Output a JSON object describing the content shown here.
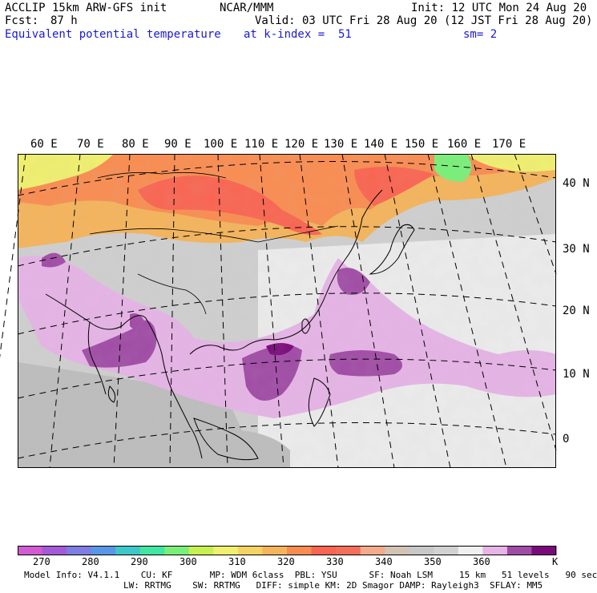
{
  "header": {
    "model_title": "ACCLIP 15km ARW-GFS init",
    "org": "NCAR/MMM",
    "init": "Init: 12 UTC Mon 24 Aug 20",
    "fcst_label": "Fcst:",
    "fcst_value": "87 h",
    "valid": "Valid: 03 UTC Fri 28 Aug 20 (12 JST Fri 28 Aug 20)",
    "field": "Equivalent potential temperature",
    "level": "at k-index =  51",
    "smooth": "sm= 2"
  },
  "map": {
    "lon_labels": [
      "60 E",
      "70 E",
      "80 E",
      "90 E",
      "100 E",
      "110 E",
      "120 E",
      "130 E",
      "140 E",
      "150 E",
      "160 E",
      "170 E"
    ],
    "lat_labels": [
      "40 N",
      "30 N",
      "20 N",
      "10 N",
      "0"
    ]
  },
  "colorbar": {
    "unit": "K",
    "tick_labels": [
      "270",
      "280",
      "290",
      "300",
      "310",
      "320",
      "330",
      "340",
      "350",
      "360"
    ],
    "colors": [
      "#d25ad2",
      "#a45ad8",
      "#7d7de4",
      "#5a96e8",
      "#3cc8c8",
      "#41e6a0",
      "#78f078",
      "#c8f050",
      "#f0f06e",
      "#f5d264",
      "#f5b45a",
      "#fa8c50",
      "#fa6450",
      "#f56e5a",
      "#f5aa8c",
      "#d2c3b4",
      "#c8c8c8",
      "#d2d2d2",
      "#f0f0f0",
      "#e6b4e6",
      "#a04ba5",
      "#7a0a7a"
    ]
  },
  "footer": {
    "line1": "Model Info: V4.1.1    CU: KF       MP: WDM 6class  PBL: YSU      SF: Noah LSM     15 km   51 levels   90 sec",
    "line2": "LW: RRTMG    SW: RRTMG   DIFF: simple KM: 2D Smagor DAMP: Rayleigh3  SFLAY: MM5"
  }
}
